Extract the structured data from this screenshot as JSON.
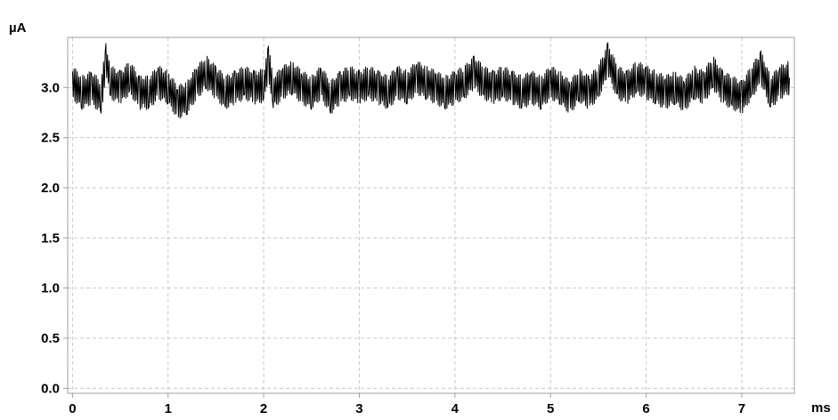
{
  "chart_data": {
    "type": "line",
    "title": "",
    "xlabel": "ms",
    "ylabel": "µA",
    "xlim": [
      -0.05,
      7.55
    ],
    "ylim": [
      -0.05,
      3.5
    ],
    "x_ticks": [
      0,
      1,
      2,
      3,
      4,
      5,
      6,
      7
    ],
    "x_tick_labels": [
      "0",
      "1",
      "2",
      "3",
      "4",
      "5",
      "6",
      "7"
    ],
    "y_ticks": [
      0.0,
      0.5,
      1.0,
      1.5,
      2.0,
      2.5,
      3.0
    ],
    "y_tick_labels": [
      "0.0",
      "0.5",
      "1.0",
      "1.5",
      "2.0",
      "2.5",
      "3.0"
    ],
    "grid": true,
    "legend": "none",
    "colors": {
      "line": "#000000",
      "grid": "#c8c8c8",
      "axis": "#a0a0a0"
    },
    "series": [
      {
        "x": [
          0,
          0.1,
          0.2,
          0.3,
          0.35,
          0.4,
          0.5,
          0.6,
          0.7,
          0.8,
          0.9,
          1.0,
          1.1,
          1.2,
          1.3,
          1.4,
          1.5,
          1.6,
          1.7,
          1.8,
          1.9,
          2.0,
          2.05,
          2.1,
          2.2,
          2.3,
          2.4,
          2.5,
          2.6,
          2.7,
          2.8,
          2.9,
          3.0,
          3.1,
          3.2,
          3.3,
          3.4,
          3.5,
          3.6,
          3.7,
          3.8,
          3.9,
          4.0,
          4.1,
          4.2,
          4.3,
          4.4,
          4.5,
          4.6,
          4.7,
          4.8,
          4.9,
          5.0,
          5.1,
          5.2,
          5.3,
          5.4,
          5.5,
          5.6,
          5.7,
          5.8,
          5.9,
          6.0,
          6.1,
          6.2,
          6.3,
          6.4,
          6.5,
          6.6,
          6.7,
          6.8,
          6.9,
          7.0,
          7.1,
          7.2,
          7.3,
          7.4,
          7.5
        ],
        "y": [
          3.05,
          2.95,
          3.0,
          2.9,
          3.28,
          3.05,
          3.0,
          3.1,
          2.95,
          2.95,
          3.05,
          3.0,
          2.85,
          2.9,
          3.05,
          3.15,
          3.05,
          2.95,
          3.0,
          3.05,
          3.0,
          3.02,
          3.25,
          2.95,
          3.05,
          3.1,
          3.0,
          2.95,
          3.05,
          2.9,
          3.0,
          3.05,
          3.0,
          3.05,
          3.0,
          2.95,
          3.05,
          3.0,
          3.1,
          3.05,
          3.0,
          2.95,
          3.0,
          3.05,
          3.15,
          3.05,
          3.0,
          3.05,
          3.0,
          2.95,
          3.0,
          2.95,
          3.05,
          3.0,
          2.9,
          3.02,
          2.95,
          3.05,
          3.28,
          3.05,
          3.0,
          3.1,
          3.05,
          3.0,
          2.95,
          3.0,
          2.92,
          3.05,
          3.0,
          3.15,
          3.0,
          2.95,
          2.9,
          3.05,
          3.2,
          2.95,
          3.05,
          3.1
        ]
      }
    ]
  }
}
